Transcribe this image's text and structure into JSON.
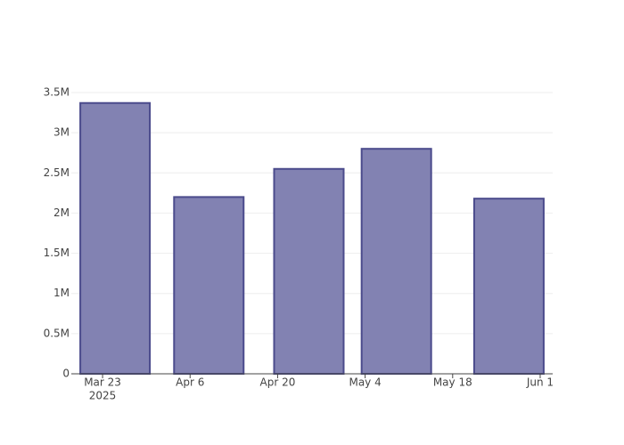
{
  "chart_data": {
    "type": "bar",
    "x": [
      "2025-03-25",
      "2025-04-09",
      "2025-04-25",
      "2025-05-09",
      "2025-05-27"
    ],
    "values": [
      3370000,
      2200000,
      2550000,
      2800000,
      2180000
    ],
    "color": "#7f7fb0",
    "edge_color": "#4b4b8c",
    "xlim": [
      "2025-03-18",
      "2025-06-03"
    ],
    "xticks": [
      {
        "value": "2025-03-23",
        "label": "Mar 23"
      },
      {
        "value": "2025-04-06",
        "label": "Apr 6"
      },
      {
        "value": "2025-04-20",
        "label": "Apr 20"
      },
      {
        "value": "2025-05-04",
        "label": "May 4"
      },
      {
        "value": "2025-05-18",
        "label": "May 18"
      },
      {
        "value": "2025-06-01",
        "label": "Jun 1"
      }
    ],
    "x_year_label": "2025",
    "ylim": [
      0,
      3500000
    ],
    "yticks": [
      0,
      {
        "value": 500000,
        "label": "0.5M"
      },
      {
        "value": 1000000,
        "label": "1M"
      },
      {
        "value": 1500000,
        "label": "1.5M"
      },
      {
        "value": 2000000,
        "label": "2M"
      },
      {
        "value": 2500000,
        "label": "2.5M"
      },
      {
        "value": 3000000,
        "label": "3M"
      },
      {
        "value": 3500000,
        "label": "3.5M"
      }
    ],
    "grid": true
  }
}
